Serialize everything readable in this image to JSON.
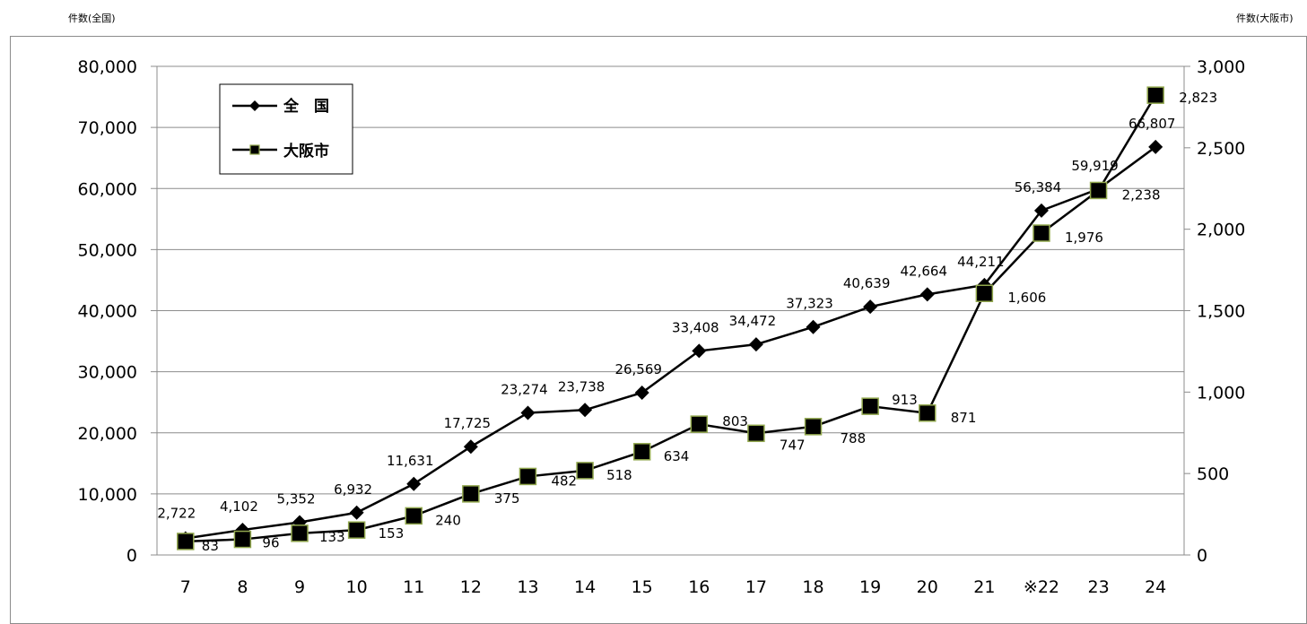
{
  "left_unit_label": "件数(全国)",
  "right_unit_label": "件数(大阪市)",
  "chart_data": {
    "type": "line",
    "title": "",
    "categories": [
      "7",
      "8",
      "9",
      "10",
      "11",
      "12",
      "13",
      "14",
      "15",
      "16",
      "17",
      "18",
      "19",
      "20",
      "21",
      "※22",
      "23",
      "24"
    ],
    "x_axis_label": "",
    "y_axis_left": {
      "label": "件数(全国)",
      "range": [
        0,
        80000
      ],
      "ticks": [
        "0",
        "10,000",
        "20,000",
        "30,000",
        "40,000",
        "50,000",
        "60,000",
        "70,000",
        "80,000"
      ]
    },
    "y_axis_right": {
      "label": "件数(大阪市)",
      "range": [
        0,
        3000
      ],
      "ticks": [
        "0",
        "500",
        "1,000",
        "1,500",
        "2,000",
        "2,500",
        "3,000"
      ]
    },
    "grid": "horizontal",
    "legend_position": "top-left",
    "series": [
      {
        "name": "全　国",
        "axis": "left",
        "marker": "diamond",
        "color": "#000000",
        "values": [
          2722,
          4102,
          5352,
          6932,
          11631,
          17725,
          23274,
          23738,
          26569,
          33408,
          34472,
          37323,
          40639,
          42664,
          44211,
          56384,
          59919,
          66807
        ],
        "labels": [
          "2,722",
          "4,102",
          "5,352",
          "6,932",
          "11,631",
          "17,725",
          "23,274",
          "23,738",
          "26,569",
          "33,408",
          "34,472",
          "37,323",
          "40,639",
          "42,664",
          "44,211",
          "56,384",
          "59,919",
          "66,807"
        ]
      },
      {
        "name": "大阪市",
        "axis": "right",
        "marker": "square",
        "color": "#000000",
        "marker_edge_color": "#92a84e",
        "values": [
          83,
          96,
          133,
          153,
          240,
          375,
          482,
          518,
          634,
          803,
          747,
          788,
          913,
          871,
          1606,
          1976,
          2238,
          2823
        ],
        "labels": [
          "83",
          "96",
          "133",
          "153",
          "240",
          "375",
          "482",
          "518",
          "634",
          "803",
          "747",
          "788",
          "913",
          "871",
          "1,606",
          "1,976",
          "2,238",
          "2,823"
        ]
      }
    ]
  }
}
